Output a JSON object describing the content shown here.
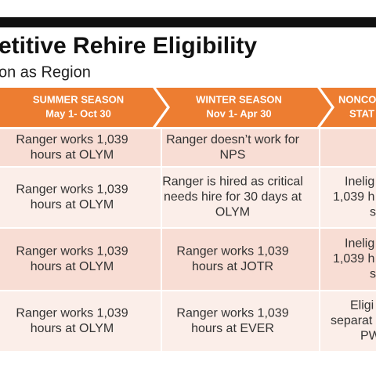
{
  "header": {
    "title": "etitive Rehire Eligibility",
    "subtitle": "on as Region"
  },
  "table": {
    "columns": [
      [
        "SUMMER SEASON",
        "May 1- Oct 30"
      ],
      [
        "WINTER SEASON",
        "Nov 1- Apr 30"
      ],
      [
        "NONCO",
        "STAT"
      ]
    ],
    "rows": [
      [
        [
          "Ranger works 1,039",
          "hours at OLYM"
        ],
        [
          "Ranger doesn’t work for",
          "NPS"
        ],
        []
      ],
      [
        [
          "Ranger works 1,039",
          "hours at OLYM"
        ],
        [
          "Ranger is hired as critical",
          "needs hire for 30 days at",
          "OLYM"
        ],
        [
          "Inelig",
          "1,039 h",
          "s"
        ]
      ],
      [
        [
          "Ranger works 1,039",
          "hours at OLYM"
        ],
        [
          "Ranger works 1,039",
          "hours at JOTR"
        ],
        [
          "Inelig",
          "1,039 h",
          "s"
        ]
      ],
      [
        [
          "Ranger works 1,039",
          "hours at OLYM"
        ],
        [
          "Ranger works 1,039",
          "hours at EVER"
        ],
        [
          "Eligi",
          "separat",
          "PW"
        ]
      ]
    ]
  }
}
